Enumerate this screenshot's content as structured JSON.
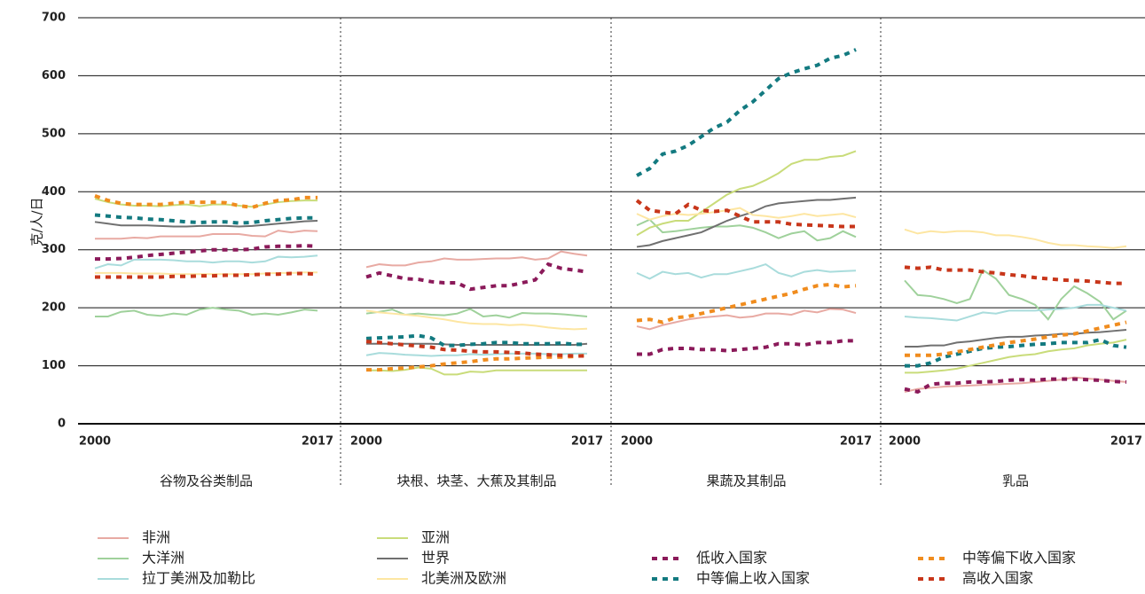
{
  "chart_data": {
    "type": "line",
    "ylabel": "克/人/日",
    "ylim": [
      0,
      700
    ],
    "yticks": [
      0,
      100,
      200,
      300,
      400,
      500,
      600,
      700
    ],
    "xlim": [
      2000,
      2017
    ],
    "xticks": [
      2000,
      2017
    ],
    "x": [
      2000,
      2001,
      2002,
      2003,
      2004,
      2005,
      2006,
      2007,
      2008,
      2009,
      2010,
      2011,
      2012,
      2013,
      2014,
      2015,
      2016,
      2017
    ],
    "legend": [
      {
        "name": "非洲",
        "color": "#e8aaa3",
        "dashed": false
      },
      {
        "name": "大洋洲",
        "color": "#9fd19b",
        "dashed": false
      },
      {
        "name": "拉丁美洲及加勒比",
        "color": "#a9dcdc",
        "dashed": false
      },
      {
        "name": "亚洲",
        "color": "#c9dc7a",
        "dashed": false
      },
      {
        "name": "世界",
        "color": "#707070",
        "dashed": false
      },
      {
        "name": "北美洲及欧洲",
        "color": "#fde6a2",
        "dashed": false
      },
      {
        "name": "低收入国家",
        "color": "#8b1a5a",
        "dashed": true
      },
      {
        "name": "中等偏上收入国家",
        "color": "#137a80",
        "dashed": true
      },
      {
        "name": "中等偏下收入国家",
        "color": "#f08c1e",
        "dashed": true
      },
      {
        "name": "高收入国家",
        "color": "#c8361a",
        "dashed": true
      }
    ],
    "panels": [
      {
        "title": "谷物及谷类制品",
        "series": [
          {
            "values": [
              319,
              319,
              319,
              321,
              320,
              323,
              323,
              323,
              323,
              327,
              327,
              327,
              324,
              323,
              333,
              330,
              333,
              332
            ]
          },
          {
            "values": [
              185,
              185,
              193,
              195,
              188,
              186,
              190,
              188,
              197,
              200,
              197,
              195,
              188,
              190,
              188,
              192,
              197,
              195
            ]
          },
          {
            "values": [
              268,
              275,
              273,
              283,
              283,
              283,
              282,
              280,
              280,
              278,
              280,
              280,
              278,
              280,
              288,
              287,
              288,
              290
            ]
          },
          {
            "values": [
              388,
              382,
              378,
              376,
              376,
              375,
              377,
              378,
              375,
              378,
              378,
              376,
              374,
              378,
              382,
              384,
              385,
              385
            ]
          },
          {
            "values": [
              348,
              345,
              342,
              342,
              342,
              341,
              340,
              340,
              341,
              341,
              341,
              340,
              341,
              343,
              345,
              347,
              349,
              350
            ]
          },
          {
            "values": [
              260,
              260,
              260,
              259,
              259,
              259,
              258,
              258,
              258,
              258,
              258,
              258,
              258,
              259,
              260,
              260,
              261,
              261
            ]
          },
          {
            "values": [
              284,
              284,
              285,
              287,
              290,
              292,
              294,
              296,
              298,
              300,
              300,
              300,
              301,
              305,
              306,
              306,
              307,
              306
            ]
          },
          {
            "values": [
              360,
              358,
              356,
              355,
              353,
              352,
              350,
              348,
              347,
              348,
              348,
              346,
              347,
              350,
              352,
              354,
              355,
              355
            ]
          },
          {
            "values": [
              393,
              385,
              380,
              378,
              378,
              378,
              380,
              382,
              382,
              382,
              381,
              376,
              373,
              380,
              385,
              386,
              390,
              390
            ]
          },
          {
            "values": [
              253,
              253,
              253,
              253,
              253,
              253,
              254,
              254,
              255,
              255,
              256,
              256,
              257,
              258,
              258,
              259,
              259,
              258
            ]
          }
        ]
      },
      {
        "title": "块根、块茎、大蕉及其制品",
        "series": [
          {
            "values": [
              270,
              275,
              273,
              273,
              278,
              280,
              285,
              283,
              283,
              284,
              285,
              285,
              287,
              283,
              285,
              297,
              293,
              290
            ]
          },
          {
            "values": [
              190,
              193,
              197,
              188,
              190,
              188,
              187,
              190,
              198,
              185,
              187,
              183,
              191,
              190,
              190,
              189,
              187,
              185
            ]
          },
          {
            "values": [
              118,
              122,
              121,
              119,
              118,
              117,
              118,
              118,
              120,
              119,
              120,
              121,
              121,
              121,
              120,
              120,
              121,
              121
            ]
          },
          {
            "values": [
              92,
              92,
              91,
              93,
              97,
              95,
              85,
              85,
              90,
              89,
              92,
              92,
              92,
              92,
              92,
              92,
              92,
              92
            ]
          },
          {
            "values": [
              138,
              138,
              138,
              138,
              138,
              138,
              137,
              136,
              136,
              136,
              136,
              136,
              136,
              136,
              136,
              136,
              136,
              138
            ]
          },
          {
            "values": [
              195,
              192,
              190,
              188,
              186,
              183,
              180,
              176,
              173,
              172,
              172,
              170,
              171,
              169,
              166,
              164,
              163,
              164
            ]
          },
          {
            "values": [
              253,
              260,
              255,
              250,
              249,
              245,
              243,
              243,
              232,
              235,
              238,
              238,
              243,
              248,
              275,
              268,
              265,
              262
            ]
          },
          {
            "values": [
              147,
              148,
              149,
              150,
              152,
              148,
              135,
              135,
              137,
              138,
              140,
              140,
              138,
              138,
              138,
              139,
              137,
              137
            ]
          },
          {
            "values": [
              93,
              93,
              95,
              96,
              98,
              100,
              103,
              105,
              107,
              110,
              112,
              112,
              113,
              114,
              115,
              115,
              116,
              118
            ]
          },
          {
            "values": [
              142,
              140,
              138,
              136,
              134,
              132,
              128,
              127,
              125,
              124,
              124,
              123,
              122,
              120,
              119,
              118,
              117,
              117
            ]
          }
        ]
      },
      {
        "title": "果蔬及其制品",
        "series": [
          {
            "values": [
              168,
              163,
              170,
              175,
              180,
              183,
              185,
              187,
              183,
              185,
              190,
              190,
              188,
              195,
              192,
              198,
              197,
              191
            ]
          },
          {
            "values": [
              342,
              352,
              330,
              332,
              335,
              338,
              340,
              340,
              342,
              338,
              330,
              320,
              328,
              332,
              316,
              320,
              332,
              322
            ]
          },
          {
            "values": [
              260,
              250,
              262,
              258,
              260,
              252,
              258,
              258,
              263,
              268,
              275,
              260,
              254,
              262,
              265,
              262,
              263,
              264
            ]
          },
          {
            "values": [
              325,
              338,
              345,
              350,
              350,
              365,
              380,
              395,
              405,
              410,
              420,
              432,
              448,
              455,
              455,
              460,
              462,
              470
            ]
          },
          {
            "values": [
              305,
              308,
              315,
              320,
              325,
              330,
              340,
              350,
              358,
              365,
              375,
              380,
              382,
              384,
              386,
              386,
              388,
              390
            ]
          },
          {
            "values": [
              362,
              352,
              358,
              362,
              360,
              362,
              365,
              368,
              372,
              360,
              358,
              355,
              358,
              362,
              358,
              360,
              362,
              356
            ]
          },
          {
            "values": [
              120,
              120,
              128,
              130,
              130,
              128,
              128,
              126,
              128,
              130,
              132,
              138,
              138,
              136,
              140,
              140,
              143,
              143
            ]
          },
          {
            "values": [
              428,
              440,
              465,
              470,
              480,
              495,
              510,
              520,
              540,
              555,
              575,
              595,
              605,
              612,
              618,
              630,
              635,
              645
            ]
          },
          {
            "values": [
              178,
              180,
              175,
              183,
              185,
              190,
              195,
              200,
              205,
              210,
              215,
              220,
              225,
              232,
              238,
              240,
              236,
              238
            ]
          },
          {
            "values": [
              385,
              368,
              365,
              362,
              378,
              368,
              366,
              368,
              358,
              348,
              348,
              348,
              344,
              343,
              342,
              341,
              340,
              340
            ]
          }
        ]
      },
      {
        "title": "乳品",
        "series": [
          {
            "values": [
              55,
              60,
              62,
              64,
              65,
              66,
              67,
              68,
              69,
              70,
              72,
              74,
              76,
              80,
              78,
              76,
              74,
              72
            ]
          },
          {
            "values": [
              247,
              222,
              220,
              215,
              208,
              215,
              265,
              250,
              222,
              215,
              205,
              180,
              215,
              237,
              225,
              210,
              180,
              195
            ]
          },
          {
            "values": [
              185,
              183,
              182,
              180,
              178,
              185,
              192,
              190,
              195,
              195,
              195,
              197,
              198,
              200,
              205,
              205,
              200,
              195
            ]
          },
          {
            "values": [
              88,
              88,
              90,
              92,
              95,
              100,
              105,
              110,
              115,
              118,
              120,
              125,
              128,
              130,
              135,
              138,
              140,
              145
            ]
          },
          {
            "values": [
              133,
              133,
              135,
              135,
              140,
              142,
              145,
              148,
              150,
              150,
              152,
              153,
              155,
              155,
              157,
              158,
              160,
              162
            ]
          },
          {
            "values": [
              335,
              328,
              332,
              330,
              332,
              332,
              330,
              325,
              325,
              322,
              318,
              312,
              308,
              308,
              306,
              305,
              303,
              306
            ]
          },
          {
            "values": [
              60,
              55,
              68,
              70,
              70,
              72,
              72,
              73,
              75,
              76,
              75,
              77,
              77,
              77,
              76,
              75,
              73,
              72
            ]
          },
          {
            "values": [
              100,
              100,
              105,
              115,
              120,
              125,
              130,
              132,
              133,
              135,
              137,
              138,
              140,
              140,
              140,
              145,
              135,
              132
            ]
          },
          {
            "values": [
              118,
              118,
              118,
              120,
              124,
              128,
              132,
              136,
              140,
              143,
              146,
              150,
              153,
              155,
              160,
              165,
              170,
              175
            ]
          },
          {
            "values": [
              270,
              268,
              270,
              265,
              265,
              265,
              262,
              260,
              257,
              255,
              252,
              250,
              248,
              247,
              246,
              244,
              242,
              242
            ]
          }
        ]
      }
    ]
  }
}
